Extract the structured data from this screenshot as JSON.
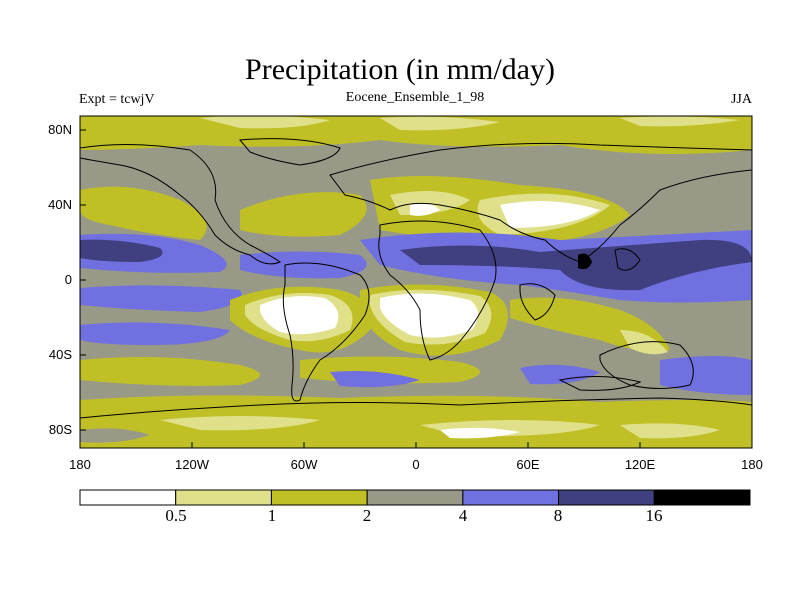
{
  "header": {
    "title": "Precipitation (in mm/day)",
    "left": "Expt = tcwjV",
    "center": "Eocene_Ensemble_1_98",
    "right": "JJA"
  },
  "axes": {
    "lat_ticks": [
      "80N",
      "40N",
      "0",
      "40S",
      "80S"
    ],
    "lon_ticks": [
      "180",
      "120W",
      "60W",
      "0",
      "60E",
      "120E",
      "180"
    ]
  },
  "colorbar": {
    "levels": [
      "0.5",
      "1",
      "2",
      "4",
      "8",
      "16"
    ],
    "colors": [
      "#ffffff",
      "#e0e08a",
      "#c0c026",
      "#999988",
      "#7070e0",
      "#404080",
      "#000000"
    ]
  },
  "map_colors": {
    "ocean_band": "#999988",
    "land_outline": "#000000"
  }
}
